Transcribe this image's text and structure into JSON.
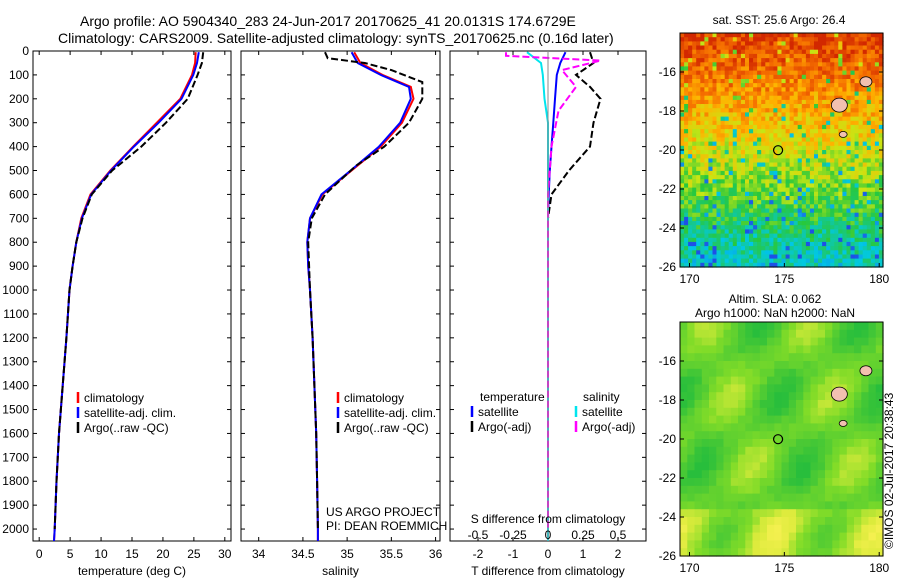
{
  "header": {
    "line1": "Argo profile: AO 5904340_283 24-Jun-2017 20170625_41 20.0131S 174.6729E",
    "line2": "Climatology: CARS2009. Satellite-adjusted climatology: synTS_20170625.nc (0.16d later)"
  },
  "depth_ticks": [
    0,
    100,
    200,
    300,
    400,
    500,
    600,
    700,
    800,
    900,
    1000,
    1100,
    1200,
    1300,
    1400,
    1500,
    1600,
    1700,
    1800,
    1900,
    2000
  ],
  "credits": {
    "line1": "US ARGO PROJECT",
    "line2": "PI: DEAN ROEMMICH"
  },
  "timestamp": "©IMOS 02-Jul-2017 20:38:43",
  "colors": {
    "climatology": "#ff0000",
    "satellite": "#0000ff",
    "argo": "#000000",
    "sal_sat": "#00e5ee",
    "sal_argo": "#ff00ff"
  },
  "chart_data": [
    {
      "type": "line",
      "xlabel": "temperature (deg C)",
      "xlim": [
        -1,
        31
      ],
      "xticks": [
        0,
        5,
        10,
        15,
        20,
        25,
        30
      ],
      "ylim": [
        0,
        2050
      ],
      "legend": [
        "climatology",
        "satellite-adj. clim.",
        "Argo(..raw -QC)"
      ],
      "series": [
        {
          "name": "climatology",
          "color": "#ff0000",
          "points": [
            [
              25.3,
              5
            ],
            [
              25.2,
              50
            ],
            [
              24.7,
              100
            ],
            [
              22.8,
              200
            ],
            [
              19,
              300
            ],
            [
              15.2,
              400
            ],
            [
              11.5,
              500
            ],
            [
              8.3,
              600
            ],
            [
              6.8,
              700
            ],
            [
              6,
              800
            ],
            [
              5.4,
              900
            ],
            [
              4.9,
              1000
            ],
            [
              4.4,
              1200
            ],
            [
              3.8,
              1400
            ],
            [
              3.2,
              1600
            ],
            [
              2.8,
              1800
            ],
            [
              2.5,
              2000
            ],
            [
              2.4,
              2050
            ]
          ]
        },
        {
          "name": "satellite-adj. clim.",
          "color": "#0000ff",
          "points": [
            [
              25.8,
              5
            ],
            [
              25.5,
              50
            ],
            [
              24.9,
              100
            ],
            [
              23,
              200
            ],
            [
              19.3,
              300
            ],
            [
              15.3,
              400
            ],
            [
              11.6,
              500
            ],
            [
              8.4,
              600
            ],
            [
              6.9,
              700
            ],
            [
              6,
              800
            ],
            [
              5.4,
              900
            ],
            [
              4.9,
              1000
            ],
            [
              4.4,
              1200
            ],
            [
              3.8,
              1400
            ],
            [
              3.2,
              1600
            ],
            [
              2.8,
              1800
            ],
            [
              2.5,
              2000
            ],
            [
              2.4,
              2050
            ]
          ]
        },
        {
          "name": "Argo(..raw -QC)",
          "color": "#000000",
          "dashed": true,
          "points": [
            [
              26.5,
              5
            ],
            [
              26.3,
              50
            ],
            [
              25.6,
              100
            ],
            [
              24,
              200
            ],
            [
              20.5,
              300
            ],
            [
              16.5,
              400
            ],
            [
              11.8,
              500
            ],
            [
              8.5,
              600
            ],
            [
              7,
              700
            ],
            [
              6,
              800
            ],
            [
              5.4,
              900
            ],
            [
              4.9,
              1000
            ],
            [
              4.4,
              1200
            ],
            [
              3.8,
              1400
            ],
            [
              3.2,
              1600
            ],
            [
              2.8,
              1800
            ],
            [
              2.5,
              2000
            ]
          ]
        }
      ]
    },
    {
      "type": "line",
      "xlabel": "salinity",
      "xlim": [
        33.8,
        36.05
      ],
      "xticks": [
        34,
        34.5,
        35,
        35.5,
        36
      ],
      "ylim": [
        0,
        2050
      ],
      "legend": [
        "climatology",
        "satellite-adj. clim.",
        "Argo(..raw -QC)"
      ],
      "series": [
        {
          "name": "climatology",
          "color": "#ff0000",
          "points": [
            [
              35.08,
              5
            ],
            [
              35.15,
              50
            ],
            [
              35.4,
              100
            ],
            [
              35.72,
              150
            ],
            [
              35.75,
              200
            ],
            [
              35.62,
              300
            ],
            [
              35.38,
              400
            ],
            [
              35.05,
              500
            ],
            [
              34.72,
              600
            ],
            [
              34.58,
              700
            ],
            [
              34.55,
              800
            ],
            [
              34.56,
              900
            ],
            [
              34.58,
              1000
            ],
            [
              34.61,
              1200
            ],
            [
              34.63,
              1400
            ],
            [
              34.65,
              1600
            ],
            [
              34.66,
              1800
            ],
            [
              34.67,
              2000
            ],
            [
              34.67,
              2050
            ]
          ]
        },
        {
          "name": "satellite-adj. clim.",
          "color": "#0000ff",
          "points": [
            [
              35.05,
              5
            ],
            [
              35.12,
              50
            ],
            [
              35.38,
              100
            ],
            [
              35.7,
              150
            ],
            [
              35.72,
              200
            ],
            [
              35.6,
              300
            ],
            [
              35.36,
              400
            ],
            [
              35.04,
              500
            ],
            [
              34.71,
              600
            ],
            [
              34.58,
              700
            ],
            [
              34.55,
              800
            ],
            [
              34.56,
              900
            ],
            [
              34.58,
              1000
            ],
            [
              34.61,
              1200
            ],
            [
              34.63,
              1400
            ],
            [
              34.65,
              1600
            ],
            [
              34.66,
              1800
            ],
            [
              34.67,
              2000
            ],
            [
              34.67,
              2050
            ]
          ]
        },
        {
          "name": "Argo(..raw -QC)",
          "color": "#000000",
          "dashed": true,
          "points": [
            [
              34.75,
              5
            ],
            [
              34.78,
              30
            ],
            [
              35.2,
              50
            ],
            [
              35.5,
              80
            ],
            [
              35.85,
              130
            ],
            [
              35.85,
              200
            ],
            [
              35.7,
              300
            ],
            [
              35.42,
              400
            ],
            [
              35.1,
              480
            ],
            [
              34.75,
              600
            ],
            [
              34.6,
              700
            ],
            [
              34.56,
              800
            ],
            [
              34.57,
              900
            ],
            [
              34.58,
              1000
            ],
            [
              34.61,
              1200
            ],
            [
              34.63,
              1400
            ],
            [
              34.65,
              1600
            ],
            [
              34.66,
              1800
            ],
            [
              34.67,
              2000
            ]
          ]
        }
      ]
    },
    {
      "type": "line",
      "xlabel": "T difference from climatology",
      "top_label": "S difference from climatology",
      "xlim": [
        -2.8,
        2.8
      ],
      "xticks": [
        -2,
        -1,
        0,
        1,
        2
      ],
      "top_ticks": [
        {
          "v": -0.5,
          "label": "-0.5"
        },
        {
          "v": -0.25,
          "label": "-0.25"
        },
        {
          "v": 0,
          "label": "0"
        },
        {
          "v": 0.25,
          "label": "0.25"
        },
        {
          "v": 0.5,
          "label": "0.5"
        }
      ],
      "top_scale": 4,
      "ylim": [
        0,
        2050
      ],
      "legend_temperature": {
        "header": "temperature",
        "items": [
          "satellite",
          "Argo(-adj)"
        ]
      },
      "legend_salinity": {
        "header": "salinity",
        "items": [
          "satellite",
          "Argo(-adj)"
        ]
      },
      "series": [
        {
          "name": "temperature satellite",
          "color": "#0000ff",
          "points": [
            [
              0.5,
              5
            ],
            [
              0.35,
              50
            ],
            [
              0.25,
              100
            ],
            [
              0.2,
              200
            ],
            [
              0.15,
              300
            ],
            [
              0.1,
              400
            ],
            [
              0.05,
              500
            ],
            [
              0.02,
              600
            ],
            [
              0,
              700
            ],
            [
              0,
              2050
            ]
          ]
        },
        {
          "name": "temperature Argo(-adj)",
          "color": "#000000",
          "dashed": true,
          "points": [
            [
              1.2,
              5
            ],
            [
              1.3,
              50
            ],
            [
              0.8,
              100
            ],
            [
              1.2,
              150
            ],
            [
              1.5,
              200
            ],
            [
              1.3,
              300
            ],
            [
              1.2,
              400
            ],
            [
              0.6,
              500
            ],
            [
              0.1,
              600
            ],
            [
              0,
              700
            ],
            [
              0,
              2000
            ]
          ]
        },
        {
          "name": "salinity satellite",
          "color": "#00e5ee",
          "points": [
            [
              -0.6,
              5
            ],
            [
              -0.2,
              50
            ],
            [
              -0.15,
              100
            ],
            [
              -0.1,
              200
            ],
            [
              0,
              300
            ],
            [
              0,
              2050
            ]
          ]
        },
        {
          "name": "salinity Argo(-adj)",
          "color": "#ff00ff",
          "dashed": true,
          "points": [
            [
              -1.2,
              5
            ],
            [
              -1.2,
              20
            ],
            [
              1.5,
              40
            ],
            [
              0.4,
              80
            ],
            [
              0.8,
              150
            ],
            [
              0.3,
              250
            ],
            [
              0.1,
              400
            ],
            [
              0,
              600
            ],
            [
              0,
              2000
            ]
          ]
        }
      ]
    },
    {
      "type": "heatmap",
      "title": "sat. SST: 25.6  Argo: 26.4",
      "xlim": [
        169.5,
        180.2
      ],
      "ylim": [
        -26,
        -14
      ],
      "xticks": [
        170,
        175,
        180
      ],
      "yticks": [
        -16,
        -18,
        -20,
        -22,
        -24,
        -26
      ],
      "marker": {
        "lon": 174.67,
        "lat": -20.01
      }
    },
    {
      "type": "heatmap",
      "title_line1": "Altim. SLA: 0.062",
      "title_line2": "Argo h1000: NaN h2000: NaN",
      "xlim": [
        169.5,
        180.2
      ],
      "ylim": [
        -26,
        -14
      ],
      "xticks": [
        170,
        175,
        180
      ],
      "yticks": [
        -16,
        -18,
        -20,
        -22,
        -24,
        -26
      ],
      "marker": {
        "lon": 174.67,
        "lat": -20.01
      }
    }
  ]
}
